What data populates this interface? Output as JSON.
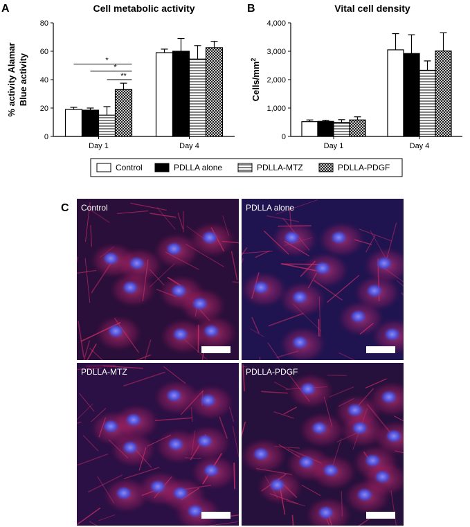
{
  "panels": {
    "A": "A",
    "B": "B",
    "C": "C"
  },
  "chart_data": [
    {
      "type": "bar",
      "title": "Cell metabolic activity",
      "ylabel_line1": "% activity Alamar",
      "ylabel_line2": "Blue activity",
      "xlabel": "",
      "categories": [
        "Day 1",
        "Day 4"
      ],
      "ylim": [
        0,
        80
      ],
      "yticks": [
        0,
        20,
        40,
        60,
        80
      ],
      "ytick_labels": [
        "0",
        "20",
        "40",
        "60",
        "80"
      ],
      "series": [
        {
          "name": "Control",
          "values": [
            19,
            59
          ],
          "errors": [
            1.5,
            2.5
          ]
        },
        {
          "name": "PDLLA alone",
          "values": [
            18.5,
            60
          ],
          "errors": [
            1.5,
            9
          ]
        },
        {
          "name": "PDLLA-MTZ",
          "values": [
            15,
            54.5
          ],
          "errors": [
            6,
            9.5
          ]
        },
        {
          "name": "PDLLA-PDGF",
          "values": [
            33,
            62.5
          ],
          "errors": [
            4.5,
            4.5
          ]
        }
      ],
      "significance": [
        {
          "label": "*",
          "from_series": 0,
          "to_series": 3,
          "category": 0,
          "y": 51
        },
        {
          "label": "*",
          "from_series": 1,
          "to_series": 3,
          "category": 0,
          "y": 46
        },
        {
          "label": "**",
          "from_series": 2,
          "to_series": 3,
          "category": 0,
          "y": 40
        }
      ],
      "grid": false
    },
    {
      "type": "bar",
      "title": "Vital cell density",
      "ylabel": "Cells/mm",
      "ylabel_sup": "2",
      "xlabel": "",
      "categories": [
        "Day 1",
        "Day 4"
      ],
      "ylim": [
        0,
        4000
      ],
      "yticks": [
        0,
        1000,
        2000,
        3000,
        4000
      ],
      "ytick_labels": [
        "0",
        "1,000",
        "2,000",
        "3,000",
        "4,000"
      ],
      "series": [
        {
          "name": "Control",
          "values": [
            520,
            3050
          ],
          "errors": [
            60,
            570
          ]
        },
        {
          "name": "PDLLA alone",
          "values": [
            530,
            2920
          ],
          "errors": [
            40,
            660
          ]
        },
        {
          "name": "PDLLA-MTZ",
          "values": [
            490,
            2330
          ],
          "errors": [
            100,
            330
          ]
        },
        {
          "name": "PDLLA-PDGF",
          "values": [
            580,
            3010
          ],
          "errors": [
            110,
            640
          ]
        }
      ],
      "grid": false
    }
  ],
  "legend": {
    "placement": "bottom-center",
    "items": [
      {
        "label": "Control",
        "pattern": "white"
      },
      {
        "label": "PDLLA alone",
        "pattern": "black"
      },
      {
        "label": "PDLLA-MTZ",
        "pattern": "hlines"
      },
      {
        "label": "PDLLA-PDGF",
        "pattern": "crosshatch"
      }
    ]
  },
  "images": [
    {
      "caption": "Control",
      "background": "#2a0f3a"
    },
    {
      "caption": "PDLLA alone",
      "background": "#1f1450"
    },
    {
      "caption": "PDLLA-MTZ",
      "background": "#2a1044"
    },
    {
      "caption": "PDLLA-PDGF",
      "background": "#26103c"
    }
  ],
  "colors": {
    "axis": "#000000",
    "nucleus": "#4a50e0",
    "actin": "#e0306a",
    "scale_bar": "#ffffff"
  }
}
